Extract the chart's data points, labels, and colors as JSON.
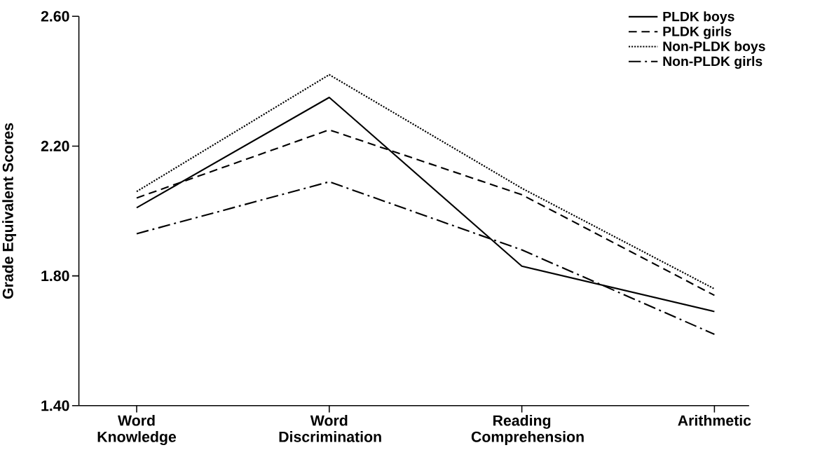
{
  "chart_data": {
    "type": "line",
    "ylabel": "Grade Equivalent Scores",
    "categories": [
      "Word Knowledge",
      "Word Discrimination",
      "Reading Comprehension",
      "Arithmetic"
    ],
    "series": [
      {
        "name": "PLDK boys",
        "color": "#000000",
        "line_style": "solid",
        "values": [
          2.01,
          2.35,
          1.83,
          1.69
        ]
      },
      {
        "name": "PLDK girls",
        "color": "#000000",
        "line_style": "dashed",
        "values": [
          2.04,
          2.25,
          2.05,
          1.74
        ]
      },
      {
        "name": "Non-PLDK boys",
        "color": "#000000",
        "line_style": "dotted",
        "values": [
          2.06,
          2.42,
          2.07,
          1.76
        ]
      },
      {
        "name": "Non-PLDK girls",
        "color": "#000000",
        "line_style": "dashdot",
        "values": [
          1.93,
          2.09,
          1.88,
          1.62
        ]
      }
    ],
    "ylim": [
      1.4,
      2.6
    ],
    "yticks": [
      {
        "value": 1.4,
        "label": "1.40"
      },
      {
        "value": 1.8,
        "label": "1.80"
      },
      {
        "value": 2.2,
        "label": "2.20"
      },
      {
        "value": 2.6,
        "label": "2.60"
      }
    ],
    "legend": "top right",
    "grid": false,
    "marker": "none"
  }
}
